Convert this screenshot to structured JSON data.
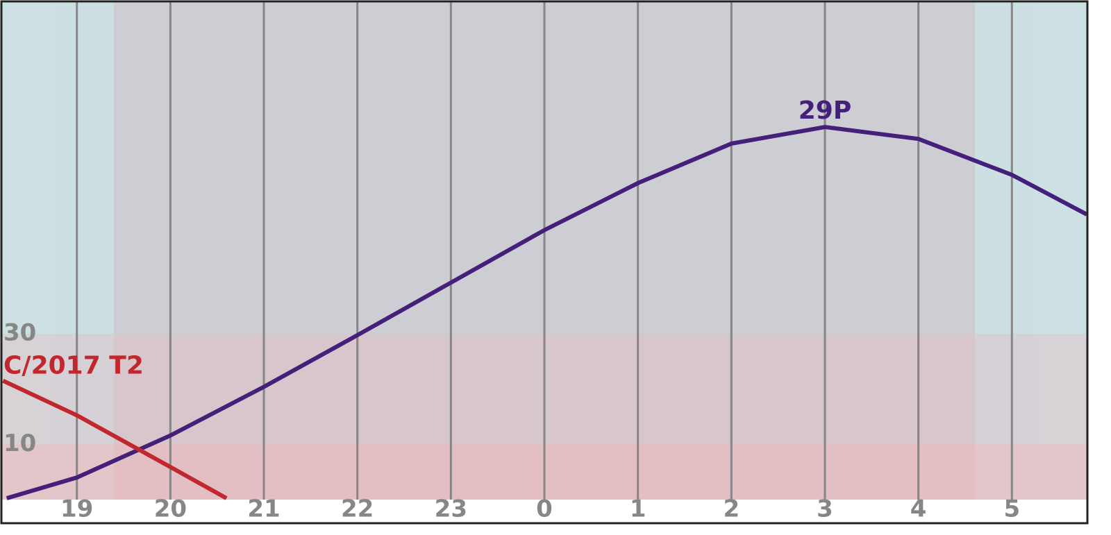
{
  "chart_data": {
    "type": "line",
    "xlim": [
      18.2,
      29.8
    ],
    "ylim": [
      0,
      90
    ],
    "xticks": [
      19,
      20,
      21,
      22,
      23,
      {
        "value": 24,
        "label": "0"
      },
      {
        "value": 25,
        "label": "1"
      },
      {
        "value": 26,
        "label": "2"
      },
      {
        "value": 27,
        "label": "3"
      },
      {
        "value": 28,
        "label": "4"
      },
      {
        "value": 29,
        "label": "5"
      }
    ],
    "yticks": [
      10,
      30
    ],
    "twilight": [
      18.75,
      19.39,
      28.61,
      29.26
    ],
    "grid": true,
    "series": [
      {
        "name": "29P",
        "color": "#45207a",
        "x": [
          18.25,
          19,
          20,
          21,
          22,
          23,
          24,
          25,
          26,
          27,
          28,
          29,
          29.8
        ],
        "values": [
          0.25,
          4,
          11.6,
          20.4,
          29.75,
          39.25,
          48.75,
          57.25,
          64.4,
          67.4,
          65.25,
          58.75,
          51.6
        ]
      },
      {
        "name": "C/2017 T2",
        "color": "#c0282d",
        "x": [
          18.21,
          19,
          20,
          20.6
        ],
        "values": [
          21.5,
          15.25,
          5.9,
          0.25
        ]
      }
    ]
  }
}
